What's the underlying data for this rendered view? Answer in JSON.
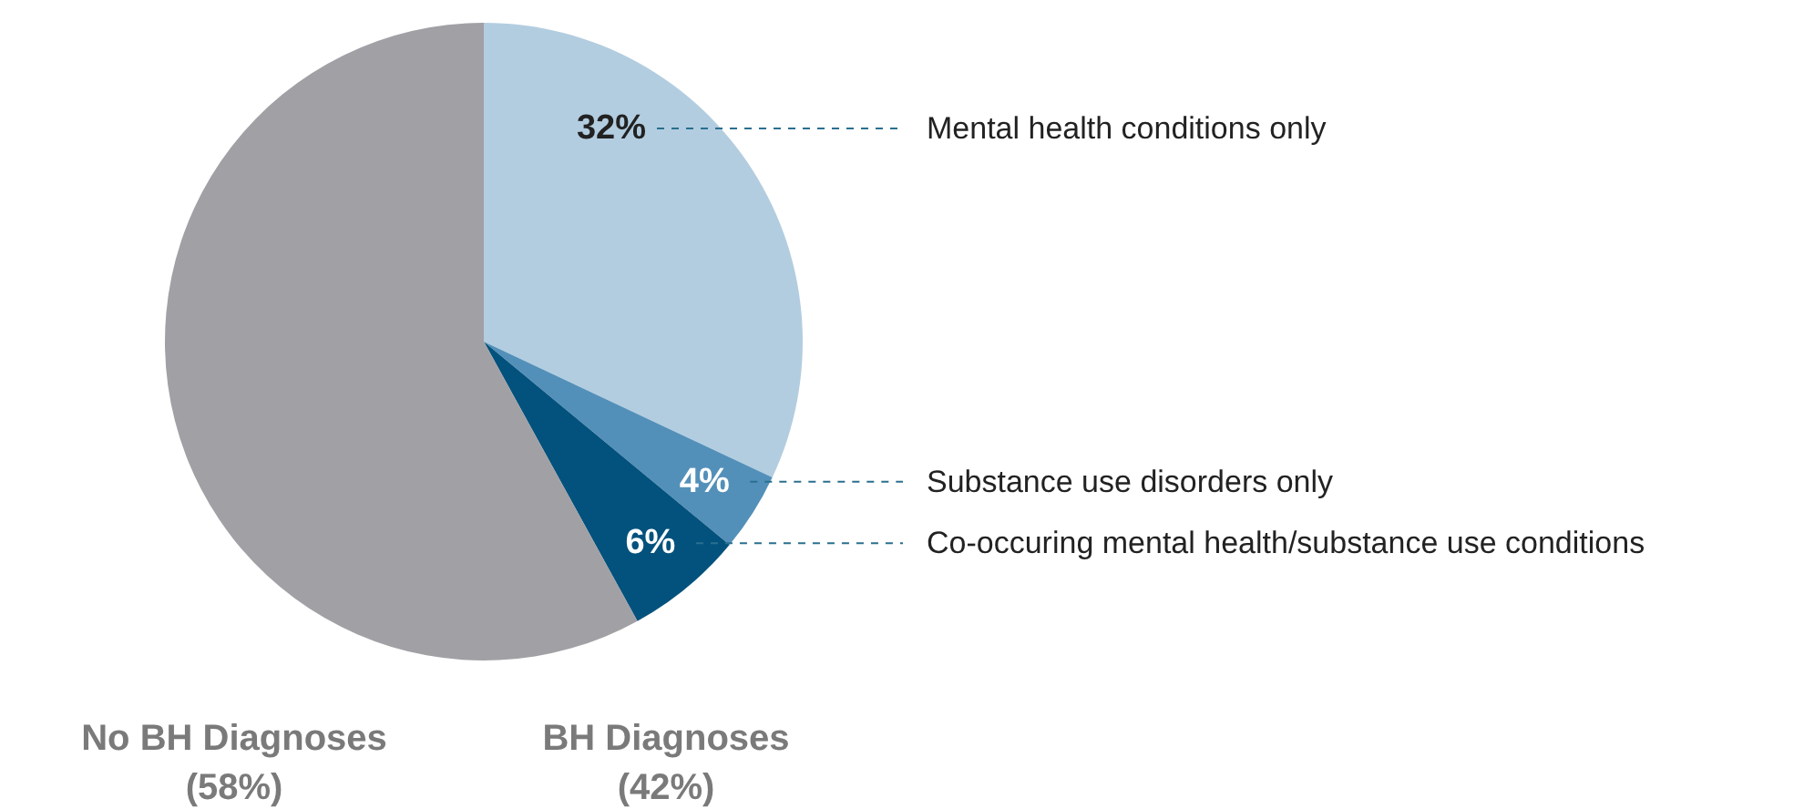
{
  "chart_data": {
    "type": "pie",
    "categories": [
      "Mental health conditions only",
      "Substance use disorders only",
      "Co-occuring mental health/substance use conditions",
      null
    ],
    "values": [
      32,
      4,
      6,
      58
    ],
    "colors": [
      "#b3cde0",
      "#5390b9",
      "#03527d",
      "#a1a0a5"
    ],
    "value_labels": [
      "32%",
      "4%",
      "6%",
      null
    ],
    "annotations": [
      "No BH Diagnoses\n(58%)",
      "BH Diagnoses\n(42%)"
    ]
  }
}
